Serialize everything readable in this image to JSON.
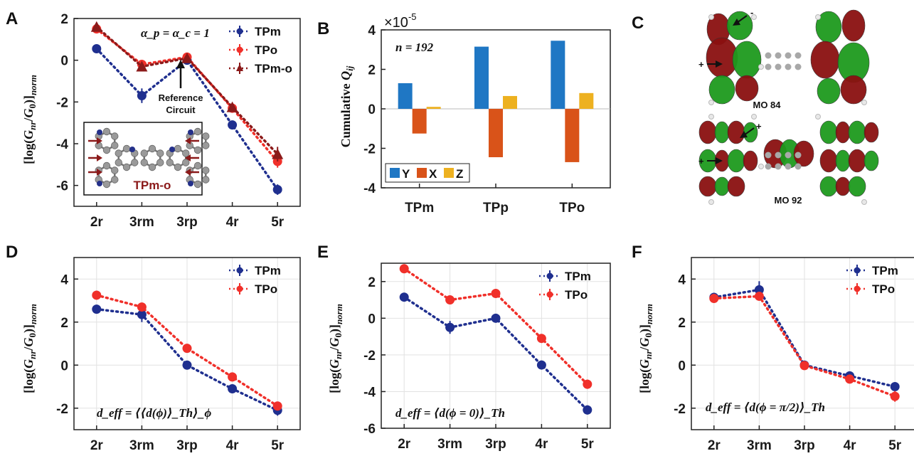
{
  "panels": {
    "A": "A",
    "B": "B",
    "C": "C",
    "D": "D",
    "E": "E",
    "F": "F"
  },
  "colors": {
    "TPm": "#1f2f8f",
    "TPo": "#f0302a",
    "TPm-o": "#8b1a1a",
    "Y": "#1f77c4",
    "X": "#d95319",
    "Z": "#edb120",
    "mo_red": "#8b1010",
    "mo_green": "#1e9a1e"
  },
  "panel_a": {
    "annotation": "α_p = α_c = 1",
    "reference_label_line1": "Reference",
    "reference_label_line2": "Circuit",
    "inset_label": "TPm-o"
  },
  "panel_b": {
    "scale_label": "×10",
    "scale_exp": "-5",
    "n_label": "n = 192"
  },
  "panel_c": {
    "mo_top": "MO 84",
    "mo_bottom": "MO 92",
    "plus": "+",
    "minus": "-"
  },
  "panel_d": {
    "annotation": "d_eff = ⟨⟨d(ϕ)⟩_Th⟩_ϕ"
  },
  "panel_e": {
    "annotation": "d_eff = ⟨d(ϕ = 0)⟩_Th"
  },
  "panel_f": {
    "annotation": "d_eff = ⟨d(ϕ = π/2)⟩_Th"
  },
  "chart_data": [
    {
      "id": "A",
      "type": "line",
      "categories": [
        "2r",
        "3rm",
        "3rp",
        "4r",
        "5r"
      ],
      "ylabel": "[log(G_nr/G_0)]_norm",
      "ylim": [
        -7,
        2
      ],
      "yticks": [
        2,
        0,
        -2,
        -4,
        -6
      ],
      "series": [
        {
          "name": "TPm",
          "marker": "circle",
          "values": [
            0.55,
            -1.7,
            0.0,
            -3.1,
            -6.2
          ],
          "err": [
            0.12,
            0.35,
            0.1,
            0.12,
            0.25
          ]
        },
        {
          "name": "TPo",
          "marker": "circle",
          "values": [
            1.5,
            -0.2,
            0.15,
            -2.3,
            -4.85
          ],
          "err": [
            0.1,
            0.1,
            0.1,
            0.1,
            0.3
          ]
        },
        {
          "name": "TPm-o",
          "marker": "triangle",
          "values": [
            1.6,
            -0.3,
            0.1,
            -2.25,
            -4.5
          ],
          "err": [
            0.1,
            0.1,
            0.1,
            0.1,
            0.35
          ]
        }
      ],
      "legend": "top-right"
    },
    {
      "id": "B",
      "type": "bar",
      "categories": [
        "TPm",
        "TPp",
        "TPo"
      ],
      "ylabel": "Cumulative Q_ij",
      "ylim": [
        -4,
        4
      ],
      "yticks": [
        4,
        2,
        0,
        -2,
        -4
      ],
      "series": [
        {
          "name": "Y",
          "values": [
            1.3,
            3.15,
            3.45
          ]
        },
        {
          "name": "X",
          "values": [
            -1.25,
            -2.45,
            -2.7
          ]
        },
        {
          "name": "Z",
          "values": [
            0.1,
            0.65,
            0.8
          ]
        }
      ],
      "legend": "bottom-left"
    },
    {
      "id": "D",
      "type": "line",
      "categories": [
        "2r",
        "3rm",
        "3rp",
        "4r",
        "5r"
      ],
      "ylabel": "[log(G_nr/G_0)]_norm",
      "ylim": [
        -3,
        5
      ],
      "yticks": [
        4,
        2,
        0,
        -2
      ],
      "grid": true,
      "series": [
        {
          "name": "TPm",
          "marker": "circle",
          "values": [
            2.6,
            2.35,
            0.0,
            -1.1,
            -2.1
          ],
          "err": [
            0.1,
            0.35,
            0.08,
            0.1,
            0.25
          ]
        },
        {
          "name": "TPo",
          "marker": "circle",
          "values": [
            3.25,
            2.7,
            0.78,
            -0.55,
            -1.9
          ],
          "err": [
            0.1,
            0.12,
            0.08,
            0.1,
            0.2
          ]
        }
      ],
      "legend": "top-right"
    },
    {
      "id": "E",
      "type": "line",
      "categories": [
        "2r",
        "3rm",
        "3rp",
        "4r",
        "5r"
      ],
      "ylabel": "[log(G_nr/G_0)]_norm",
      "ylim": [
        -6,
        3
      ],
      "yticks": [
        2,
        0,
        -2,
        -4,
        -6
      ],
      "grid": true,
      "series": [
        {
          "name": "TPm",
          "marker": "circle",
          "values": [
            1.15,
            -0.5,
            0.0,
            -2.55,
            -5.0
          ],
          "err": [
            0.1,
            0.35,
            0.08,
            0.12,
            0.25
          ]
        },
        {
          "name": "TPo",
          "marker": "circle",
          "values": [
            2.7,
            1.0,
            1.35,
            -1.1,
            -3.6
          ],
          "err": [
            0.1,
            0.1,
            0.1,
            0.12,
            0.25
          ]
        }
      ],
      "legend": "top-right"
    },
    {
      "id": "F",
      "type": "line",
      "categories": [
        "2r",
        "3rm",
        "3rp",
        "4r",
        "5r"
      ],
      "ylabel": "[log(G_nr/G_0)]_norm",
      "ylim": [
        -3,
        5
      ],
      "yticks": [
        4,
        2,
        0,
        -2
      ],
      "grid": true,
      "series": [
        {
          "name": "TPm",
          "marker": "circle",
          "values": [
            3.15,
            3.5,
            0.0,
            -0.5,
            -1.0
          ],
          "err": [
            0.1,
            0.4,
            0.08,
            0.1,
            0.2
          ]
        },
        {
          "name": "TPo",
          "marker": "circle",
          "values": [
            3.1,
            3.2,
            -0.02,
            -0.65,
            -1.45
          ],
          "err": [
            0.1,
            0.12,
            0.08,
            0.1,
            0.25
          ]
        }
      ],
      "legend": "top-right"
    }
  ]
}
